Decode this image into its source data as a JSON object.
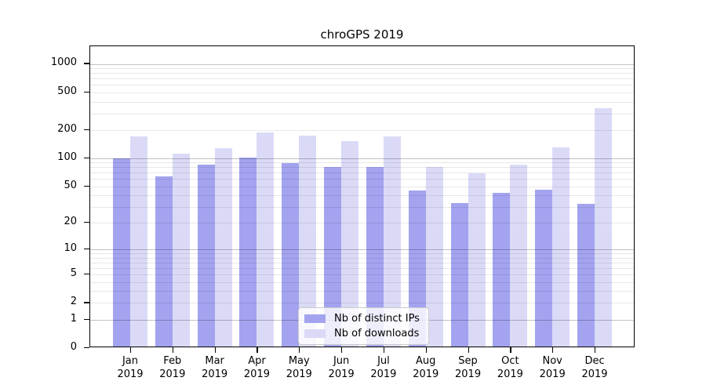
{
  "title": "chroGPS 2019",
  "legend": {
    "items": [
      {
        "label": "Nb of distinct IPs",
        "color": "#a3a3f0"
      },
      {
        "label": "Nb of downloads",
        "color": "#dadaf7"
      }
    ]
  },
  "y_axis": {
    "tick_labels": [
      "1000",
      "500",
      "200",
      "100",
      "50",
      "20",
      "10",
      "5",
      "2",
      "1",
      "0"
    ]
  },
  "x_axis": {
    "year_line": "2019"
  },
  "chart_data": {
    "type": "bar",
    "title": "chroGPS 2019",
    "categories": [
      "Jan",
      "Feb",
      "Mar",
      "Apr",
      "May",
      "Jun",
      "Jul",
      "Aug",
      "Sep",
      "Oct",
      "Nov",
      "Dec"
    ],
    "x_tick_second_line": "2019",
    "series": [
      {
        "name": "Nb of distinct IPs",
        "color": "#a3a3f0",
        "values": [
          96,
          62,
          83,
          97,
          86,
          78,
          78,
          43,
          32,
          41,
          44,
          31
        ]
      },
      {
        "name": "Nb of downloads",
        "color": "#dadaf7",
        "values": [
          165,
          107,
          123,
          181,
          168,
          147,
          165,
          77,
          67,
          83,
          126,
          328
        ]
      }
    ],
    "yscale": "log1p",
    "y_ticks": [
      1000,
      500,
      200,
      100,
      50,
      20,
      10,
      5,
      2,
      1,
      0
    ],
    "ylim": [
      0,
      1200
    ],
    "grid": true,
    "legend_position": "lower center inside"
  }
}
